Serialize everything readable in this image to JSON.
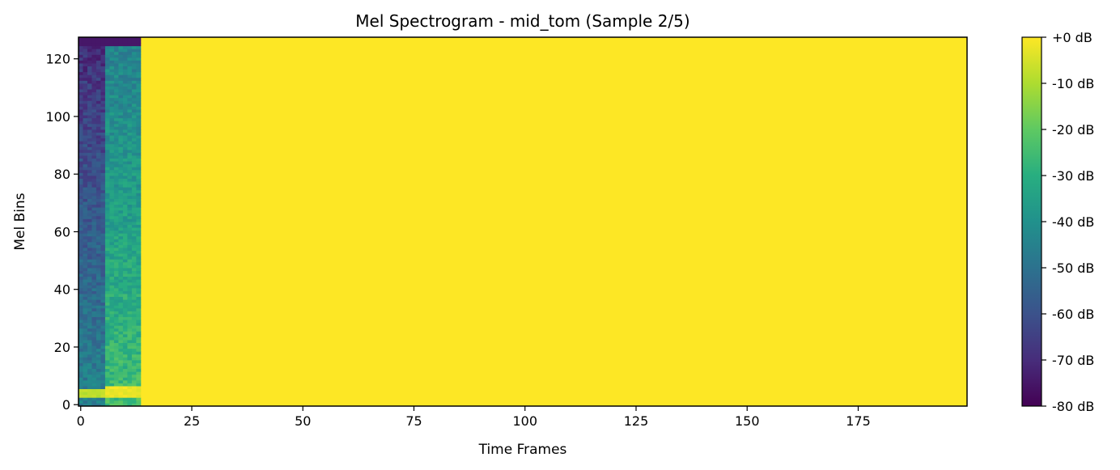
{
  "chart_data": {
    "type": "heatmap",
    "title": "Mel Spectrogram - mid_tom (Sample 2/5)",
    "xlabel": "Time Frames",
    "ylabel": "Mel Bins",
    "xlim": [
      -0.5,
      199.5
    ],
    "ylim": [
      -0.5,
      127.5
    ],
    "x_ticks": [
      0,
      25,
      50,
      75,
      100,
      125,
      150,
      175
    ],
    "y_ticks": [
      0,
      20,
      40,
      60,
      80,
      100,
      120
    ],
    "colormap": "viridis",
    "colorbar": {
      "range": [
        -80,
        0
      ],
      "ticks": [
        {
          "value": 0,
          "label": "+0 dB"
        },
        {
          "value": -10,
          "label": "-10 dB"
        },
        {
          "value": -20,
          "label": "-20 dB"
        },
        {
          "value": -30,
          "label": "-30 dB"
        },
        {
          "value": -40,
          "label": "-40 dB"
        },
        {
          "value": -50,
          "label": "-50 dB"
        },
        {
          "value": -60,
          "label": "-60 dB"
        },
        {
          "value": -70,
          "label": "-70 dB"
        },
        {
          "value": -80,
          "label": "-80 dB"
        }
      ]
    },
    "n_frames": 200,
    "n_mels": 128,
    "fill_value_db": 0,
    "segments": [
      {
        "frames": [
          0,
          5
        ],
        "db_at_bin0": -45,
        "db_at_bin127": -70,
        "low_band_peak_db": -8,
        "low_band_bins": [
          3,
          5
        ]
      },
      {
        "frames": [
          6,
          13
        ],
        "db_at_bin0": -25,
        "db_at_bin127": -45,
        "low_band_peak_db": -2,
        "low_band_bins": [
          3,
          6
        ]
      }
    ],
    "top_edge": {
      "bins": [
        125,
        127
      ],
      "db": -75
    }
  }
}
